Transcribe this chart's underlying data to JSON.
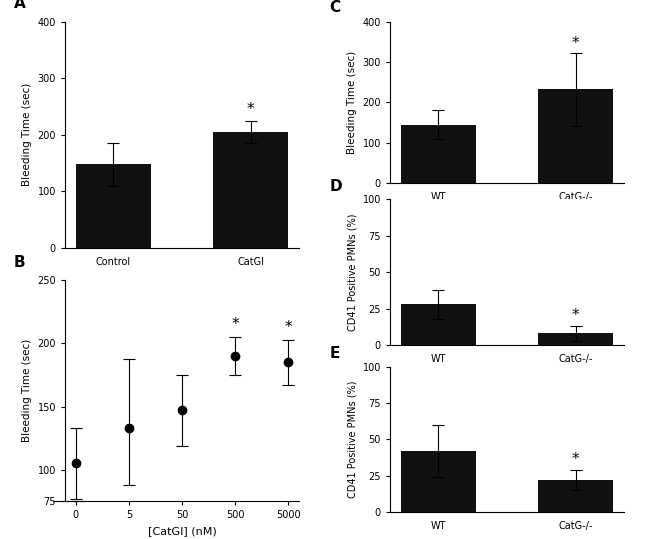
{
  "panel_A": {
    "label": "A",
    "categories": [
      "Control",
      "CatGI"
    ],
    "values": [
      148,
      205
    ],
    "errors": [
      38,
      20
    ],
    "ylabel": "Bleeding Time (sec)",
    "ylim": [
      0,
      400
    ],
    "yticks": [
      0,
      100,
      200,
      300,
      400
    ],
    "significance": [
      false,
      true
    ],
    "bar_color": "#111111"
  },
  "panel_B": {
    "label": "B",
    "x": [
      0,
      5,
      50,
      500,
      5000
    ],
    "values": [
      105,
      133,
      147,
      190,
      185
    ],
    "errors_up": [
      28,
      55,
      28,
      15,
      18
    ],
    "errors_down": [
      28,
      45,
      28,
      15,
      18
    ],
    "ylabel": "Bleeding Time (sec)",
    "xlabel": "[CatGI] (nM)",
    "ylim": [
      75,
      250
    ],
    "yticks": [
      75,
      100,
      150,
      200,
      250
    ],
    "significance": [
      false,
      false,
      false,
      true,
      true
    ],
    "marker_color": "#111111"
  },
  "panel_C": {
    "label": "C",
    "categories": [
      "WT",
      "CatG-/-"
    ],
    "values": [
      145,
      232
    ],
    "errors": [
      35,
      90
    ],
    "ylabel": "Bleeding Time (sec)",
    "ylim": [
      0,
      400
    ],
    "yticks": [
      0,
      100,
      200,
      300,
      400
    ],
    "significance": [
      false,
      true
    ],
    "bar_color": "#111111"
  },
  "panel_D": {
    "label": "D",
    "categories": [
      "WT",
      "CatG-/-"
    ],
    "values": [
      28,
      8
    ],
    "errors": [
      10,
      5
    ],
    "ylabel": "CD41 Positive PMNs (%)",
    "ylim": [
      0,
      100
    ],
    "yticks": [
      0,
      25,
      50,
      75,
      100
    ],
    "significance": [
      false,
      true
    ],
    "bar_color": "#111111"
  },
  "panel_E": {
    "label": "E",
    "categories": [
      "WT",
      "CatG-/-"
    ],
    "values": [
      42,
      22
    ],
    "errors": [
      18,
      7
    ],
    "ylabel": "CD41 Positive PMNs (%)",
    "ylim": [
      0,
      100
    ],
    "yticks": [
      0,
      25,
      50,
      75,
      100
    ],
    "significance": [
      false,
      true
    ],
    "bar_color": "#111111"
  },
  "figure_bg": "#ffffff",
  "font_color": "#000000"
}
